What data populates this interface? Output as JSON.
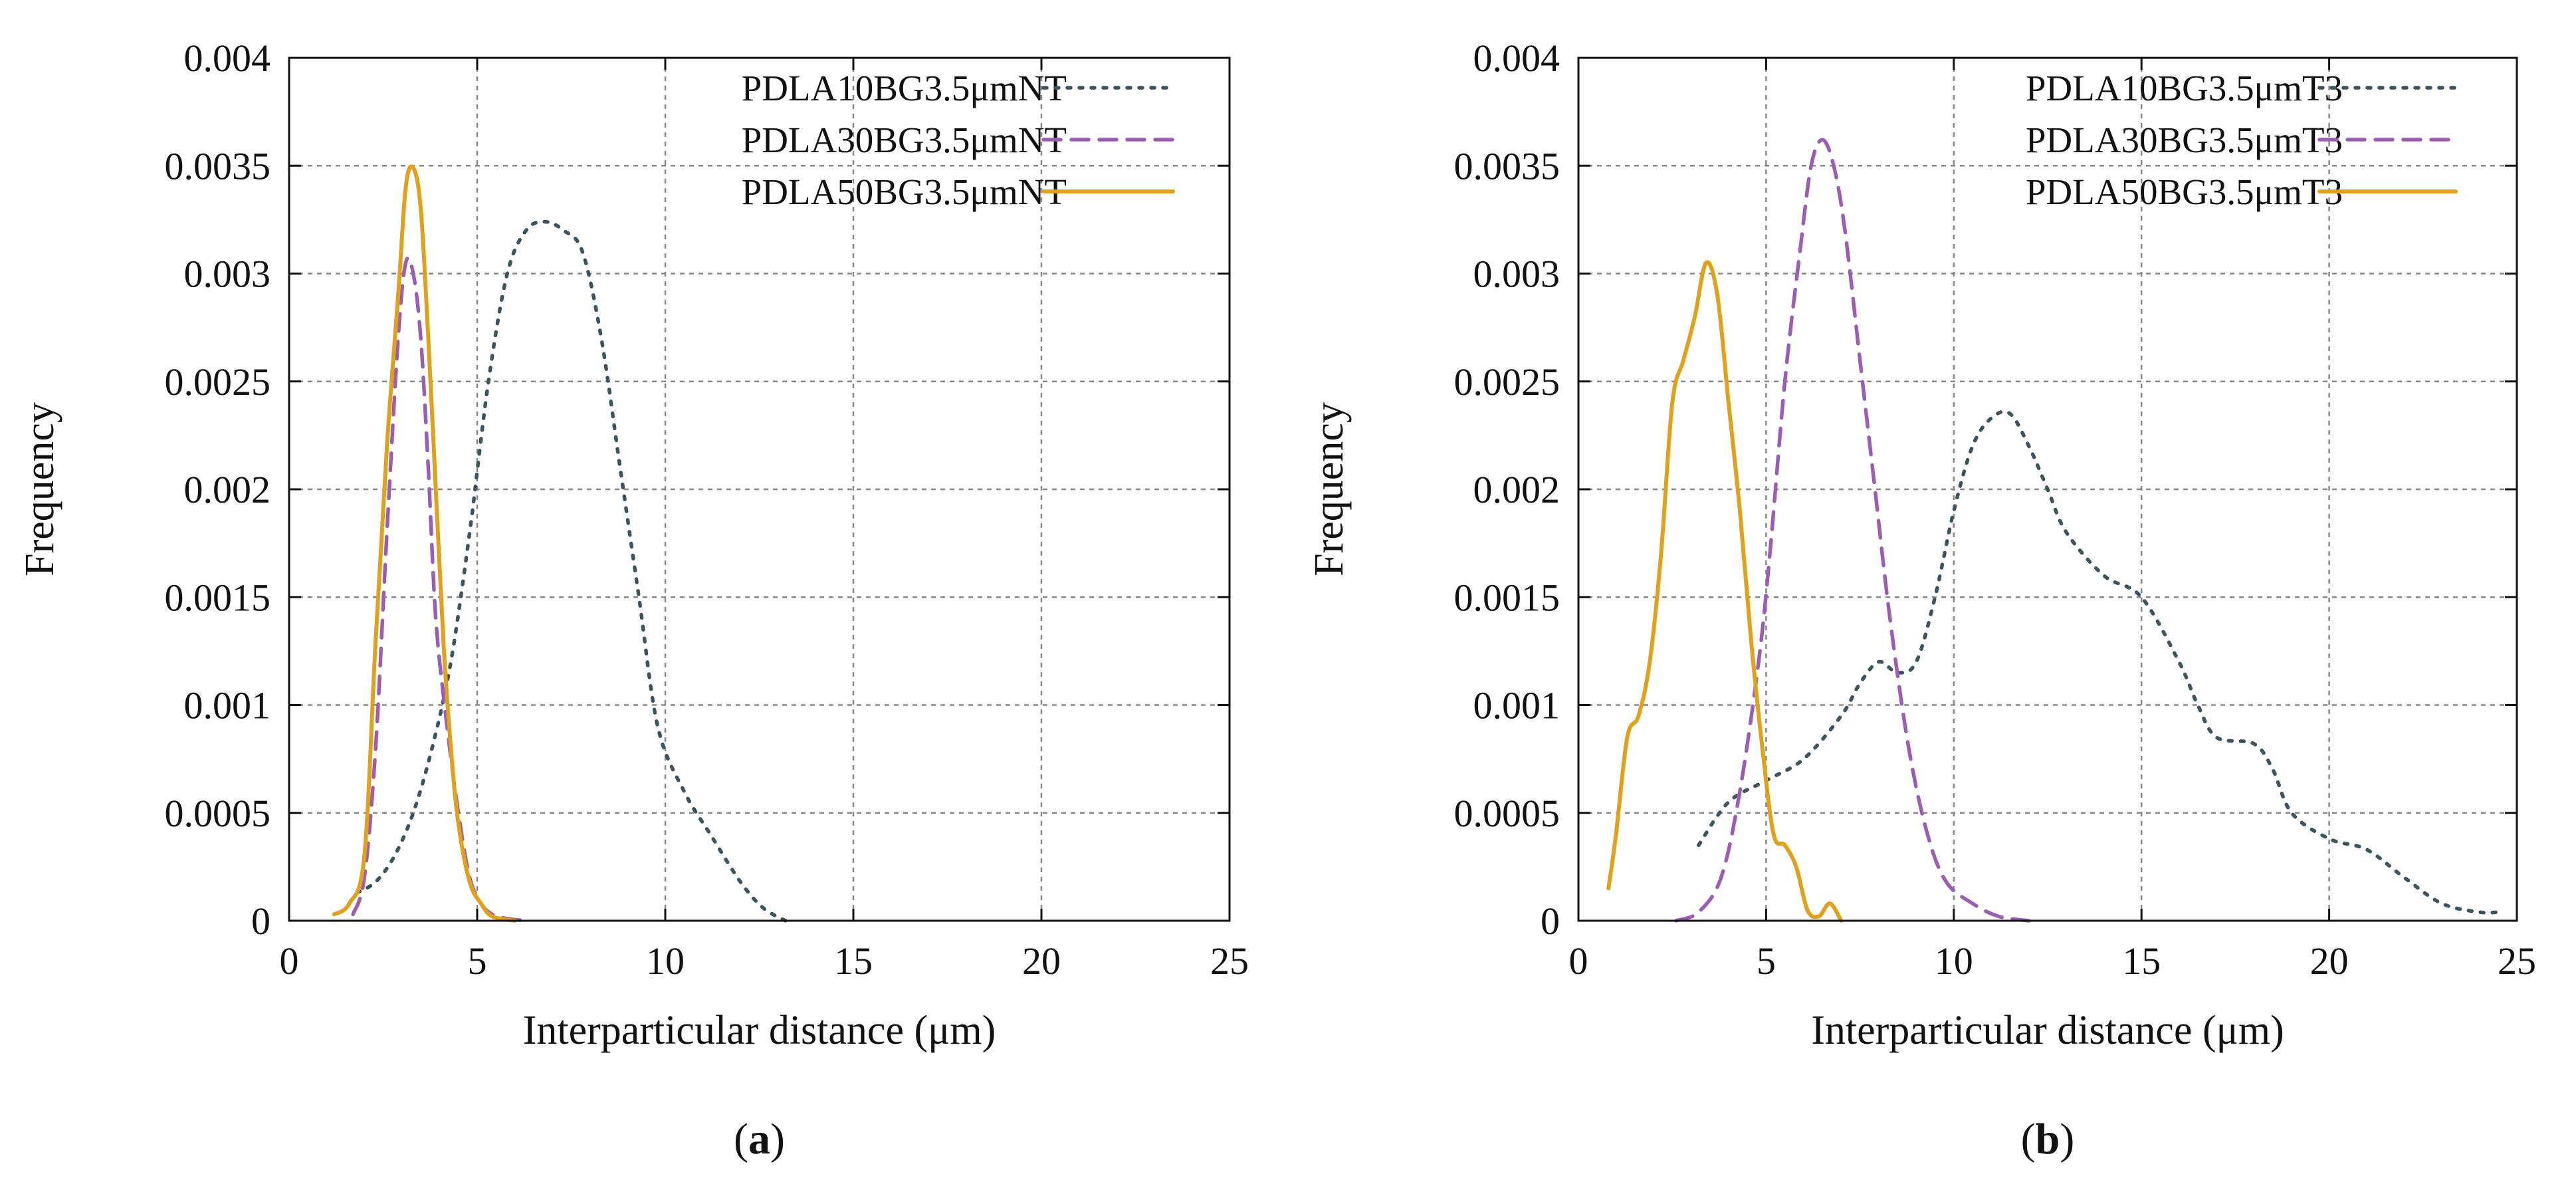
{
  "chart_data": [
    {
      "panel": "a",
      "caption_letter": "a",
      "type": "line",
      "title": "",
      "xlabel": "Interparticular distance (μm)",
      "ylabel": "Frequency",
      "xlim": [
        0,
        25
      ],
      "ylim": [
        0,
        0.004
      ],
      "xticks": [
        0,
        5,
        10,
        15,
        20,
        25
      ],
      "yticks": [
        0,
        0.0005,
        0.001,
        0.0015,
        0.002,
        0.0025,
        0.003,
        0.0035,
        0.004
      ],
      "xtick_labels": [
        "0",
        "5",
        "10",
        "15",
        "20",
        "25"
      ],
      "ytick_labels": [
        "0",
        "0.0005",
        "0.001",
        "0.0015",
        "0.002",
        "0.0025",
        "0.003",
        "0.0035",
        "0.004"
      ],
      "grid": true,
      "legend_position": "top-right",
      "series": [
        {
          "name": "PDLA10BG3.5μmNT",
          "color": "#3b5560",
          "style": "dotted",
          "x": [
            1.8,
            2.3,
            2.8,
            3.3,
            3.8,
            4.3,
            4.8,
            5.3,
            5.8,
            6.3,
            6.8,
            7.3,
            7.8,
            8.3,
            8.8,
            9.3,
            9.8,
            10.5,
            11.2,
            12.0,
            12.6,
            13.2
          ],
          "y": [
            0.00013,
            0.00018,
            0.0003,
            0.0005,
            0.0008,
            0.0012,
            0.0018,
            0.0025,
            0.003,
            0.0032,
            0.00324,
            0.0032,
            0.0031,
            0.0027,
            0.0021,
            0.0015,
            0.0009,
            0.0006,
            0.0004,
            0.00018,
            6e-05,
            0.0
          ]
        },
        {
          "name": "PDLA30BG3.5μmNT",
          "color": "#9a5fb4",
          "style": "dashed",
          "x": [
            1.7,
            2.0,
            2.3,
            2.6,
            2.9,
            3.1,
            3.3,
            3.5,
            3.7,
            3.9,
            4.2,
            4.5,
            4.8,
            5.1,
            5.4,
            5.8,
            6.3
          ],
          "y": [
            3e-05,
            0.0002,
            0.0008,
            0.0018,
            0.0027,
            0.00305,
            0.003,
            0.0027,
            0.0021,
            0.0014,
            0.0009,
            0.0005,
            0.0002,
            8e-05,
            3e-05,
            1e-05,
            0.0
          ]
        },
        {
          "name": "PDLA50BG3.5μmNT",
          "color": "#e0a21c",
          "style": "solid",
          "x": [
            1.2,
            1.6,
            2.0,
            2.3,
            2.6,
            2.9,
            3.1,
            3.3,
            3.5,
            3.7,
            3.9,
            4.1,
            4.3,
            4.5,
            4.8,
            5.1,
            5.4,
            6.0
          ],
          "y": [
            3e-05,
            8e-05,
            0.0003,
            0.0013,
            0.0022,
            0.0029,
            0.0034,
            0.00349,
            0.0033,
            0.0027,
            0.002,
            0.0013,
            0.0008,
            0.00045,
            0.00018,
            8e-05,
            2e-05,
            0.0
          ]
        }
      ]
    },
    {
      "panel": "b",
      "caption_letter": "b",
      "type": "line",
      "title": "",
      "xlabel": "Interparticular distance (μm)",
      "ylabel": "Frequency",
      "xlim": [
        0,
        25
      ],
      "ylim": [
        0,
        0.004
      ],
      "xticks": [
        0,
        5,
        10,
        15,
        20,
        25
      ],
      "yticks": [
        0,
        0.0005,
        0.001,
        0.0015,
        0.002,
        0.0025,
        0.003,
        0.0035,
        0.004
      ],
      "xtick_labels": [
        "0",
        "5",
        "10",
        "15",
        "20",
        "25"
      ],
      "ytick_labels": [
        "0",
        "0.0005",
        "0.001",
        "0.0015",
        "0.002",
        "0.0025",
        "0.003",
        "0.0035",
        "0.004"
      ],
      "grid": true,
      "legend_position": "top-right",
      "series": [
        {
          "name": "PDLA10BG3.5μmT3",
          "color": "#3b5560",
          "style": "dotted",
          "x": [
            3.2,
            4.0,
            5.0,
            6.0,
            7.0,
            7.5,
            8.0,
            8.5,
            9.0,
            9.5,
            10.0,
            10.5,
            11.0,
            11.5,
            12.0,
            12.5,
            13.0,
            14.0,
            15.0,
            16.0,
            16.5,
            17.0,
            18.0,
            18.5,
            19.0,
            20.0,
            21.0,
            22.0,
            23.0,
            24.0,
            24.5
          ],
          "y": [
            0.00035,
            0.00055,
            0.00065,
            0.00075,
            0.00095,
            0.0011,
            0.0012,
            0.00115,
            0.0012,
            0.0015,
            0.0019,
            0.0022,
            0.00233,
            0.00235,
            0.0022,
            0.002,
            0.0018,
            0.0016,
            0.0015,
            0.0012,
            0.001,
            0.00085,
            0.00082,
            0.0007,
            0.0005,
            0.00038,
            0.00033,
            0.0002,
            8e-05,
            4e-05,
            4e-05
          ]
        },
        {
          "name": "PDLA30BG3.5μmT3",
          "color": "#9a5fb4",
          "style": "dashed",
          "x": [
            2.6,
            3.2,
            3.8,
            4.3,
            4.8,
            5.1,
            5.5,
            5.9,
            6.2,
            6.5,
            6.8,
            7.1,
            7.5,
            7.9,
            8.3,
            8.8,
            9.3,
            9.8,
            10.5,
            11.2,
            12.0
          ],
          "y": [
            0.0,
            4e-05,
            0.0002,
            0.0006,
            0.0012,
            0.0017,
            0.0025,
            0.0031,
            0.0035,
            0.00362,
            0.0035,
            0.0032,
            0.0026,
            0.002,
            0.0014,
            0.0008,
            0.0004,
            0.00018,
            8e-05,
            2e-05,
            0.0
          ]
        },
        {
          "name": "PDLA50BG3.5μmT3",
          "color": "#e0a21c",
          "style": "solid",
          "x": [
            0.8,
            1.0,
            1.3,
            1.6,
            1.9,
            2.2,
            2.5,
            2.8,
            3.1,
            3.4,
            3.7,
            4.0,
            4.3,
            4.6,
            4.9,
            5.2,
            5.5,
            5.8,
            6.1,
            6.4,
            6.7,
            7.0
          ],
          "y": [
            0.00015,
            0.0004,
            0.00085,
            0.00095,
            0.0012,
            0.0017,
            0.0024,
            0.0026,
            0.0028,
            0.00305,
            0.0029,
            0.0024,
            0.0019,
            0.0013,
            0.0008,
            0.0004,
            0.00035,
            0.00025,
            5e-05,
            2e-05,
            8e-05,
            0.0
          ]
        }
      ]
    }
  ]
}
